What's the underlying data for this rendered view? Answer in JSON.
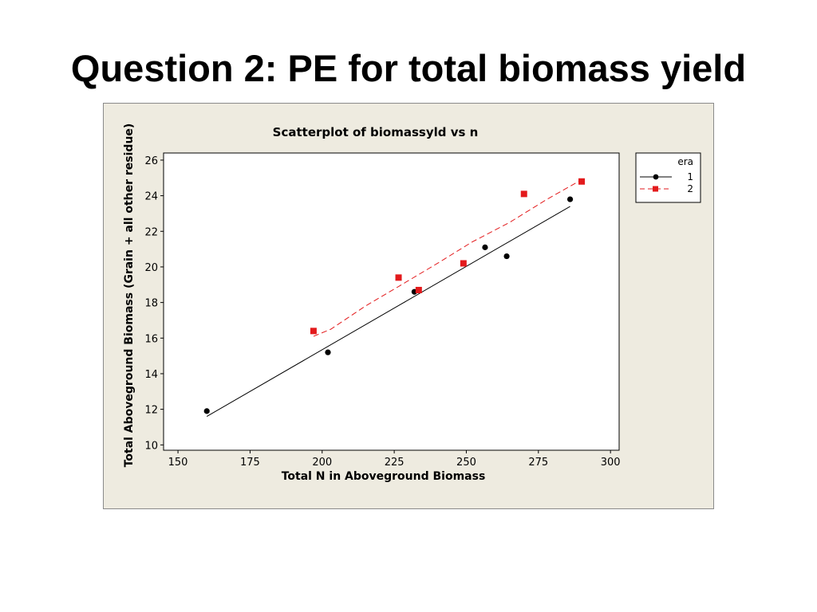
{
  "slide": {
    "title": "Question 2: PE for total biomass yield"
  },
  "colors": {
    "frame_bg": "#eeebe0",
    "plot_bg": "#ffffff",
    "series_1": "#000000",
    "series_2": "#e31a1c"
  },
  "chart_data": {
    "type": "scatter",
    "title": "Scatterplot of biomassyld vs n",
    "xlabel": "Total N in Aboveground Biomass",
    "ylabel": "Total Aboveground Biomass (Grain + all other residue)",
    "xlim": [
      145,
      303
    ],
    "ylim": [
      9.7,
      26.4
    ],
    "xticks": [
      150,
      175,
      200,
      225,
      250,
      275,
      300
    ],
    "yticks": [
      10,
      12,
      14,
      16,
      18,
      20,
      22,
      24,
      26
    ],
    "grid": false,
    "legend": {
      "title": "era",
      "placement": "right"
    },
    "series": [
      {
        "name": "1",
        "marker": "circle",
        "line": "solid",
        "color": "#000000",
        "points": [
          {
            "x": 160,
            "y": 11.9
          },
          {
            "x": 202,
            "y": 15.2
          },
          {
            "x": 232,
            "y": 18.6
          },
          {
            "x": 256.5,
            "y": 21.1
          },
          {
            "x": 264,
            "y": 20.6
          },
          {
            "x": 286,
            "y": 23.8
          }
        ],
        "fit": [
          {
            "x": 160,
            "y": 11.6
          },
          {
            "x": 286,
            "y": 23.4
          }
        ]
      },
      {
        "name": "2",
        "marker": "square",
        "line": "dashed",
        "color": "#e31a1c",
        "points": [
          {
            "x": 197,
            "y": 16.4
          },
          {
            "x": 226.5,
            "y": 19.4
          },
          {
            "x": 233.5,
            "y": 18.7
          },
          {
            "x": 249,
            "y": 20.2
          },
          {
            "x": 270,
            "y": 24.1
          },
          {
            "x": 290,
            "y": 24.8
          }
        ],
        "fit": [
          {
            "x": 197,
            "y": 16.1
          },
          {
            "x": 203,
            "y": 16.5
          },
          {
            "x": 215,
            "y": 17.8
          },
          {
            "x": 226.5,
            "y": 18.9
          },
          {
            "x": 240,
            "y": 20.2
          },
          {
            "x": 252,
            "y": 21.4
          },
          {
            "x": 265,
            "y": 22.5
          },
          {
            "x": 278,
            "y": 23.8
          },
          {
            "x": 290,
            "y": 24.9
          }
        ]
      }
    ]
  }
}
